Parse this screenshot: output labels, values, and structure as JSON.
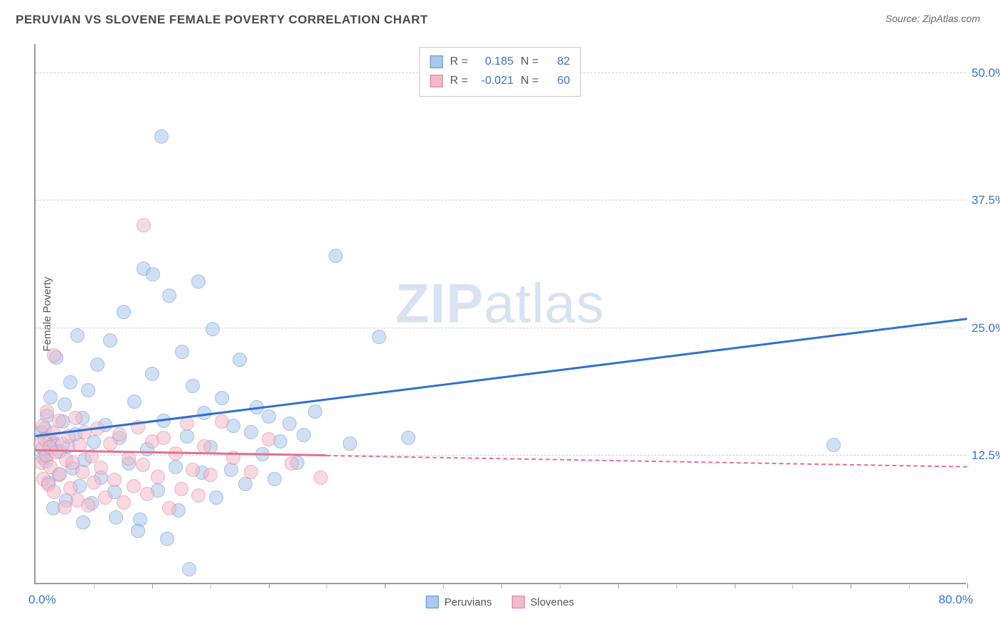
{
  "header": {
    "title": "PERUVIAN VS SLOVENE FEMALE POVERTY CORRELATION CHART",
    "source": "Source: ZipAtlas.com"
  },
  "yaxis": {
    "title": "Female Poverty"
  },
  "watermark": {
    "zip": "ZIP",
    "atlas": "atlas"
  },
  "chart": {
    "type": "scatter",
    "xlim": [
      0,
      80
    ],
    "ylim": [
      0,
      53
    ],
    "x_min_label": "0.0%",
    "x_max_label": "80.0%",
    "yticks": [
      {
        "v": 12.5,
        "label": "12.5%"
      },
      {
        "v": 25.0,
        "label": "25.0%"
      },
      {
        "v": 37.5,
        "label": "37.5%"
      },
      {
        "v": 50.0,
        "label": "50.0%"
      }
    ],
    "xticks_major": [
      10,
      20,
      30,
      40,
      50,
      60,
      70,
      80
    ],
    "xticks_minor": [
      5,
      15,
      25,
      35,
      45,
      55,
      65,
      75
    ],
    "grid_color": "#d0d0d0",
    "background_color": "#ffffff",
    "axis_color": "#9a9a9a",
    "marker_radius": 10,
    "marker_opacity": 0.55,
    "series": [
      {
        "name": "Peruvians",
        "fill": "#a9c8ec",
        "stroke": "#5b8fd6",
        "line_color": "#2f6fd0",
        "r_label": "R =",
        "r_value": "0.185",
        "n_label": "N =",
        "n_value": "82",
        "reg": {
          "x0": 0,
          "y0": 14.3,
          "x1": 80,
          "y1": 25.8,
          "solid_until": 80
        },
        "points": [
          [
            0.5,
            14.8
          ],
          [
            0.6,
            13.2
          ],
          [
            0.7,
            12.3
          ],
          [
            0.8,
            15.1
          ],
          [
            0.9,
            11.9
          ],
          [
            1.0,
            16.4
          ],
          [
            1.1,
            9.8
          ],
          [
            1.2,
            14.0
          ],
          [
            1.3,
            18.2
          ],
          [
            1.5,
            7.3
          ],
          [
            1.6,
            13.7
          ],
          [
            1.8,
            22.1
          ],
          [
            2.0,
            10.6
          ],
          [
            2.1,
            12.9
          ],
          [
            2.3,
            15.8
          ],
          [
            2.5,
            17.5
          ],
          [
            2.6,
            8.1
          ],
          [
            2.8,
            13.4
          ],
          [
            3.0,
            19.7
          ],
          [
            3.2,
            11.2
          ],
          [
            3.4,
            14.6
          ],
          [
            3.6,
            24.3
          ],
          [
            3.8,
            9.5
          ],
          [
            4.0,
            16.2
          ],
          [
            4.2,
            12.1
          ],
          [
            4.5,
            18.9
          ],
          [
            4.8,
            7.8
          ],
          [
            5.0,
            13.8
          ],
          [
            5.3,
            21.4
          ],
          [
            5.6,
            10.3
          ],
          [
            6.0,
            15.5
          ],
          [
            6.4,
            23.8
          ],
          [
            6.8,
            8.9
          ],
          [
            7.2,
            14.2
          ],
          [
            7.6,
            26.6
          ],
          [
            8.0,
            11.7
          ],
          [
            8.5,
            17.8
          ],
          [
            9.0,
            6.2
          ],
          [
            9.3,
            30.8
          ],
          [
            9.6,
            13.1
          ],
          [
            10.0,
            20.5
          ],
          [
            10.1,
            30.3
          ],
          [
            10.5,
            9.1
          ],
          [
            10.8,
            43.8
          ],
          [
            11.0,
            15.9
          ],
          [
            11.5,
            28.2
          ],
          [
            12.0,
            11.4
          ],
          [
            12.3,
            7.1
          ],
          [
            12.6,
            22.7
          ],
          [
            13.0,
            14.4
          ],
          [
            13.5,
            19.3
          ],
          [
            14.0,
            29.6
          ],
          [
            14.3,
            10.8
          ],
          [
            14.5,
            16.7
          ],
          [
            15.0,
            13.3
          ],
          [
            15.2,
            24.9
          ],
          [
            15.5,
            8.4
          ],
          [
            16.0,
            18.1
          ],
          [
            16.8,
            11.1
          ],
          [
            17.0,
            15.4
          ],
          [
            17.5,
            21.9
          ],
          [
            18.0,
            9.7
          ],
          [
            18.5,
            14.8
          ],
          [
            19.0,
            17.2
          ],
          [
            19.5,
            12.6
          ],
          [
            20.0,
            16.3
          ],
          [
            20.5,
            10.2
          ],
          [
            21.0,
            13.9
          ],
          [
            21.8,
            15.6
          ],
          [
            22.5,
            11.8
          ],
          [
            23.0,
            14.5
          ],
          [
            24.0,
            16.8
          ],
          [
            25.8,
            32.1
          ],
          [
            27.0,
            13.7
          ],
          [
            29.5,
            24.1
          ],
          [
            32.0,
            14.2
          ],
          [
            13.2,
            1.3
          ],
          [
            68.5,
            13.5
          ],
          [
            4.1,
            5.9
          ],
          [
            6.9,
            6.4
          ],
          [
            8.8,
            5.1
          ],
          [
            11.3,
            4.3
          ]
        ]
      },
      {
        "name": "Slovenes",
        "fill": "#f3b9c9",
        "stroke": "#e07b98",
        "line_color": "#e2708f",
        "r_label": "R =",
        "r_value": "-0.021",
        "n_label": "N =",
        "n_value": "60",
        "reg": {
          "x0": 0,
          "y0": 12.9,
          "x1": 80,
          "y1": 11.3,
          "solid_until": 25
        },
        "points": [
          [
            0.4,
            13.6
          ],
          [
            0.5,
            11.8
          ],
          [
            0.6,
            15.4
          ],
          [
            0.7,
            10.2
          ],
          [
            0.8,
            14.1
          ],
          [
            0.9,
            12.5
          ],
          [
            1.0,
            16.8
          ],
          [
            1.1,
            9.6
          ],
          [
            1.2,
            13.3
          ],
          [
            1.3,
            11.4
          ],
          [
            1.5,
            14.7
          ],
          [
            1.6,
            8.9
          ],
          [
            1.8,
            12.8
          ],
          [
            2.0,
            15.9
          ],
          [
            2.1,
            10.7
          ],
          [
            2.3,
            13.6
          ],
          [
            2.5,
            7.4
          ],
          [
            2.6,
            12.1
          ],
          [
            2.8,
            14.4
          ],
          [
            3.0,
            9.3
          ],
          [
            3.2,
            11.8
          ],
          [
            3.4,
            16.2
          ],
          [
            3.6,
            8.1
          ],
          [
            3.8,
            13.5
          ],
          [
            4.0,
            10.9
          ],
          [
            4.2,
            14.8
          ],
          [
            4.5,
            7.6
          ],
          [
            4.8,
            12.4
          ],
          [
            5.0,
            9.8
          ],
          [
            5.3,
            15.1
          ],
          [
            5.6,
            11.3
          ],
          [
            6.0,
            8.4
          ],
          [
            6.4,
            13.7
          ],
          [
            6.8,
            10.1
          ],
          [
            7.2,
            14.6
          ],
          [
            7.6,
            7.9
          ],
          [
            8.0,
            12.2
          ],
          [
            8.4,
            9.5
          ],
          [
            8.8,
            15.3
          ],
          [
            9.2,
            11.6
          ],
          [
            9.3,
            35.1
          ],
          [
            9.6,
            8.7
          ],
          [
            10.0,
            13.9
          ],
          [
            10.5,
            10.4
          ],
          [
            11.0,
            14.2
          ],
          [
            11.5,
            7.3
          ],
          [
            12.0,
            12.7
          ],
          [
            12.5,
            9.2
          ],
          [
            13.0,
            15.6
          ],
          [
            13.5,
            11.1
          ],
          [
            14.0,
            8.6
          ],
          [
            14.5,
            13.4
          ],
          [
            15.0,
            10.6
          ],
          [
            16.0,
            15.8
          ],
          [
            17.0,
            12.3
          ],
          [
            18.5,
            10.9
          ],
          [
            20.0,
            14.1
          ],
          [
            22.0,
            11.7
          ],
          [
            24.5,
            10.3
          ],
          [
            1.6,
            22.3
          ]
        ]
      }
    ]
  },
  "legend_bottom": {
    "items": [
      {
        "label": "Peruvians",
        "fill": "#a9c8ec",
        "stroke": "#5b8fd6"
      },
      {
        "label": "Slovenes",
        "fill": "#f3b9c9",
        "stroke": "#e07b98"
      }
    ]
  }
}
